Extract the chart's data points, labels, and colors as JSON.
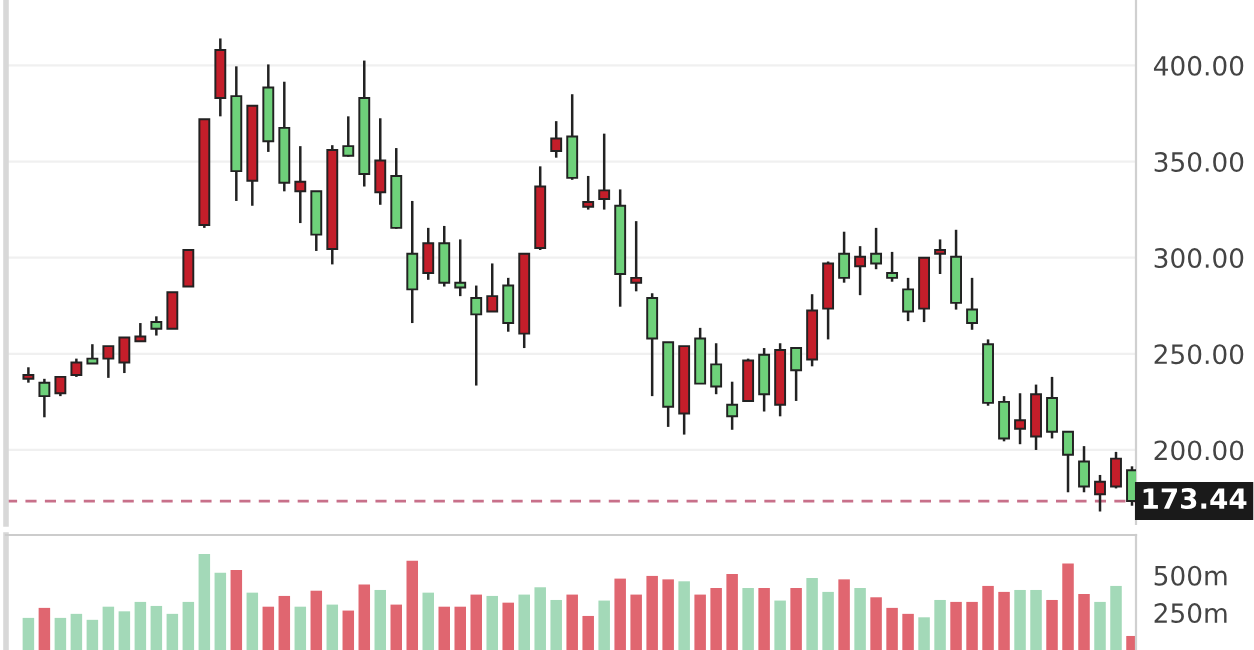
{
  "chart_data": [
    {
      "type": "candlestick",
      "tick_labels": "y",
      "grid": "y",
      "categories": [
        null,
        null,
        null,
        null,
        null,
        null,
        null,
        null,
        null,
        null,
        null,
        null,
        null,
        null,
        null,
        null,
        null,
        null,
        null,
        null,
        null,
        null,
        null,
        null,
        null,
        null,
        null,
        null,
        null,
        null,
        null,
        null,
        null,
        null,
        null,
        null,
        null,
        null,
        null,
        null,
        null,
        null,
        null,
        null,
        null,
        null,
        null,
        null,
        null,
        null,
        null,
        null,
        null,
        null,
        null,
        null,
        null,
        null,
        null,
        null,
        null,
        null,
        null,
        null,
        null,
        null,
        null,
        null,
        null,
        null
      ],
      "ohlc": [
        [
          237,
          243,
          235,
          239
        ],
        [
          235,
          237,
          217,
          228
        ],
        [
          229.5,
          238,
          228,
          238
        ],
        [
          239,
          247.5,
          238,
          245.5
        ],
        [
          247.5,
          255,
          245,
          245
        ],
        [
          247.5,
          254,
          237.5,
          254
        ],
        [
          245.5,
          258.5,
          240,
          258.5
        ],
        [
          256.5,
          266,
          256.5,
          259
        ],
        [
          266.5,
          269.5,
          259.5,
          263
        ],
        [
          263,
          282,
          263,
          282
        ],
        [
          285,
          304,
          285,
          304
        ],
        [
          317,
          372,
          315.5,
          372
        ],
        [
          383,
          414,
          373.5,
          408
        ],
        [
          384,
          399.5,
          329.5,
          345
        ],
        [
          340,
          379,
          327,
          379
        ],
        [
          388.5,
          400.5,
          355,
          360.5
        ],
        [
          367.5,
          391.5,
          334.5,
          339
        ],
        [
          334.5,
          358,
          318,
          339.5
        ],
        [
          334.5,
          334.5,
          303.5,
          312
        ],
        [
          304.5,
          358.5,
          296.5,
          356
        ],
        [
          358,
          373.5,
          352.5,
          353
        ],
        [
          383,
          402.5,
          337,
          343.5
        ],
        [
          334,
          372.5,
          327.5,
          350.5
        ],
        [
          342.5,
          357,
          315,
          315.5
        ],
        [
          302,
          329.5,
          266,
          283.5
        ],
        [
          292,
          315.5,
          288.5,
          307.5
        ],
        [
          307.5,
          316.5,
          285,
          287
        ],
        [
          287,
          309.5,
          280,
          284.5
        ],
        [
          279,
          285.5,
          233.5,
          270.5
        ],
        [
          272,
          297,
          272,
          280
        ],
        [
          285.5,
          289.5,
          261.5,
          266
        ],
        [
          260.5,
          302,
          253,
          302
        ],
        [
          305,
          347.5,
          304,
          337
        ],
        [
          355.5,
          371,
          352,
          362
        ],
        [
          363,
          385,
          340.5,
          341.5
        ],
        [
          326.5,
          342.5,
          325,
          329
        ],
        [
          330.5,
          364.5,
          325,
          335
        ],
        [
          327,
          335.5,
          274.5,
          291.5
        ],
        [
          287,
          319,
          282.5,
          289.5
        ],
        [
          279,
          281.5,
          228,
          258
        ],
        [
          256,
          256,
          212,
          222.5
        ],
        [
          219,
          254,
          208,
          254
        ],
        [
          258,
          263.5,
          234.5,
          234.5
        ],
        [
          244.5,
          255.5,
          229,
          233
        ],
        [
          223.5,
          235.5,
          210.5,
          217.5
        ],
        [
          225.5,
          247.5,
          225.5,
          246.5
        ],
        [
          249.5,
          253,
          220,
          229
        ],
        [
          223.5,
          255.5,
          217.5,
          252
        ],
        [
          253,
          253,
          225.5,
          241.5
        ],
        [
          247,
          281,
          243.5,
          272.5
        ],
        [
          273.5,
          298,
          257.5,
          297
        ],
        [
          302,
          313.5,
          287,
          289.5
        ],
        [
          295.5,
          306,
          280.5,
          300.5
        ],
        [
          302,
          315.5,
          294,
          297
        ],
        [
          292,
          303,
          287.5,
          289.5
        ],
        [
          283.5,
          289.5,
          267,
          272
        ],
        [
          273.5,
          300,
          266.5,
          300
        ],
        [
          302,
          309.5,
          291.5,
          304
        ],
        [
          300.5,
          314.5,
          273,
          276.5
        ],
        [
          273,
          289.5,
          262.5,
          266
        ],
        [
          255,
          257.5,
          223,
          224.5
        ],
        [
          225,
          228,
          204.5,
          206
        ],
        [
          211,
          229.5,
          203,
          215.5
        ],
        [
          207,
          234,
          200,
          229
        ],
        [
          227,
          238,
          206,
          209.5
        ],
        [
          209.5,
          209.5,
          178,
          197.5
        ],
        [
          194,
          202,
          178,
          181
        ],
        [
          177,
          187,
          168,
          183.5
        ],
        [
          181,
          199,
          180,
          195.5
        ],
        [
          189.5,
          191.5,
          171,
          173.44
        ]
      ],
      "colors": [
        "#c41e2a",
        "#6ed17a",
        "#c41e2a",
        "#c41e2a",
        "#6ed17a",
        "#c41e2a",
        "#c41e2a",
        "#c41e2a",
        "#6ed17a",
        "#c41e2a",
        "#c41e2a",
        "#c41e2a",
        "#c41e2a",
        "#6ed17a",
        "#c41e2a",
        "#6ed17a",
        "#6ed17a",
        "#c41e2a",
        "#6ed17a",
        "#c41e2a",
        "#6ed17a",
        "#6ed17a",
        "#c41e2a",
        "#6ed17a",
        "#6ed17a",
        "#c41e2a",
        "#6ed17a",
        "#6ed17a",
        "#6ed17a",
        "#c41e2a",
        "#6ed17a",
        "#c41e2a",
        "#c41e2a",
        "#c41e2a",
        "#6ed17a",
        "#c41e2a",
        "#c41e2a",
        "#6ed17a",
        "#c41e2a",
        "#6ed17a",
        "#6ed17a",
        "#c41e2a",
        "#6ed17a",
        "#6ed17a",
        "#6ed17a",
        "#c41e2a",
        "#6ed17a",
        "#c41e2a",
        "#6ed17a",
        "#c41e2a",
        "#c41e2a",
        "#6ed17a",
        "#c41e2a",
        "#6ed17a",
        "#6ed17a",
        "#6ed17a",
        "#c41e2a",
        "#c41e2a",
        "#6ed17a",
        "#6ed17a",
        "#6ed17a",
        "#6ed17a",
        "#c41e2a",
        "#c41e2a",
        "#6ed17a",
        "#6ed17a",
        "#6ed17a",
        "#c41e2a",
        "#c41e2a",
        "#6ed17a"
      ],
      "ylim": [
        161.5,
        434
      ],
      "yticks": [
        {
          "value": 200,
          "label": "200.00"
        },
        {
          "value": 250,
          "label": "250.00"
        },
        {
          "value": 300,
          "label": "300.00"
        },
        {
          "value": 350,
          "label": "350.00"
        },
        {
          "value": 400,
          "label": "400.00"
        }
      ],
      "ref_lines": [
        {
          "axis": "y",
          "value": 173.44,
          "label": "173.44",
          "color": "#c8708a",
          "line_style": "dashed"
        }
      ]
    },
    {
      "type": "bar",
      "tick_labels": "y",
      "categories": [
        null,
        null,
        null,
        null,
        null,
        null,
        null,
        null,
        null,
        null,
        null,
        null,
        null,
        null,
        null,
        null,
        null,
        null,
        null,
        null,
        null,
        null,
        null,
        null,
        null,
        null,
        null,
        null,
        null,
        null,
        null,
        null,
        null,
        null,
        null,
        null,
        null,
        null,
        null,
        null,
        null,
        null,
        null,
        null,
        null,
        null,
        null,
        null,
        null,
        null,
        null,
        null,
        null,
        null,
        null,
        null,
        null,
        null,
        null,
        null,
        null,
        null,
        null,
        null,
        null,
        null,
        null,
        null,
        null,
        null
      ],
      "values": [
        215,
        282,
        215,
        242,
        202,
        290,
        259,
        322,
        295,
        242,
        322,
        643,
        517,
        536,
        384,
        290,
        362,
        290,
        397,
        304,
        264,
        438,
        402,
        304,
        598,
        384,
        290,
        290,
        371,
        362,
        317,
        371,
        420,
        335,
        371,
        228,
        331,
        478,
        371,
        496,
        473,
        460,
        371,
        415,
        509,
        415,
        415,
        331,
        415,
        482,
        389,
        473,
        415,
        353,
        282,
        242,
        219,
        335,
        322,
        322,
        429,
        389,
        402,
        402,
        335,
        580,
        375,
        322,
        429,
        94
      ],
      "colors": [
        "#a3d9b8",
        "#e06670",
        "#a3d9b8",
        "#a3d9b8",
        "#a3d9b8",
        "#a3d9b8",
        "#a3d9b8",
        "#a3d9b8",
        "#a3d9b8",
        "#a3d9b8",
        "#a3d9b8",
        "#a3d9b8",
        "#a3d9b8",
        "#e06670",
        "#a3d9b8",
        "#e06670",
        "#e06670",
        "#a3d9b8",
        "#e06670",
        "#a3d9b8",
        "#e06670",
        "#e06670",
        "#a3d9b8",
        "#e06670",
        "#e06670",
        "#a3d9b8",
        "#e06670",
        "#e06670",
        "#e06670",
        "#a3d9b8",
        "#e06670",
        "#a3d9b8",
        "#a3d9b8",
        "#a3d9b8",
        "#e06670",
        "#e06670",
        "#a3d9b8",
        "#e06670",
        "#e06670",
        "#e06670",
        "#e06670",
        "#a3d9b8",
        "#e06670",
        "#e06670",
        "#e06670",
        "#a3d9b8",
        "#e06670",
        "#a3d9b8",
        "#e06670",
        "#a3d9b8",
        "#a3d9b8",
        "#e06670",
        "#a3d9b8",
        "#e06670",
        "#e06670",
        "#e06670",
        "#a3d9b8",
        "#a3d9b8",
        "#e06670",
        "#e06670",
        "#e06670",
        "#e06670",
        "#a3d9b8",
        "#a3d9b8",
        "#e06670",
        "#e06670",
        "#e06670",
        "#a3d9b8",
        "#a3d9b8",
        "#e06670"
      ],
      "ylim": [
        0,
        770
      ],
      "yticks": [
        {
          "value": 250,
          "label": "250m"
        },
        {
          "value": 500,
          "label": "500m"
        }
      ]
    }
  ]
}
